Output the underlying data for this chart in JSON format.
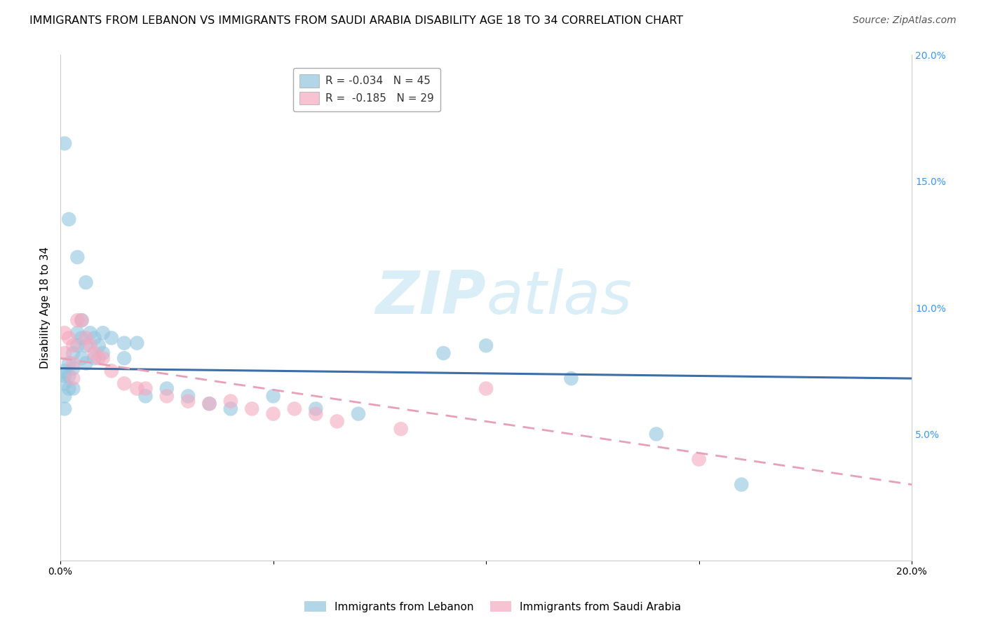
{
  "title": "IMMIGRANTS FROM LEBANON VS IMMIGRANTS FROM SAUDI ARABIA DISABILITY AGE 18 TO 34 CORRELATION CHART",
  "source": "Source: ZipAtlas.com",
  "ylabel": "Disability Age 18 to 34",
  "xlim": [
    0.0,
    0.2
  ],
  "ylim": [
    0.0,
    0.2
  ],
  "y_ticks": [
    0.05,
    0.1,
    0.15,
    0.2
  ],
  "y_tick_labels": [
    "5.0%",
    "10.0%",
    "15.0%",
    "20.0%"
  ],
  "watermark_zip": "ZIP",
  "watermark_atlas": "atlas",
  "legend_label_leb": "R = -0.034   N = 45",
  "legend_label_sau": "R =  -0.185   N = 29",
  "legend_R_leb": "-0.034",
  "legend_N_leb": "45",
  "legend_R_sau": "-0.185",
  "legend_N_sau": "29",
  "lebanon_color": "#92c5de",
  "saudi_color": "#f4a9c0",
  "background_color": "#ffffff",
  "grid_color": "#cccccc",
  "title_fontsize": 11.5,
  "axis_label_fontsize": 11,
  "tick_fontsize": 10,
  "legend_fontsize": 11,
  "source_fontsize": 10,
  "watermark_color": "#daeef8",
  "lebanon_line_color": "#3c6ea8",
  "saudi_line_color": "#e8a0b8",
  "leb_x": [
    0.001,
    0.001,
    0.001,
    0.001,
    0.001,
    0.002,
    0.002,
    0.002,
    0.003,
    0.003,
    0.003,
    0.004,
    0.004,
    0.005,
    0.005,
    0.005,
    0.006,
    0.006,
    0.007,
    0.008,
    0.008,
    0.009,
    0.01,
    0.01,
    0.012,
    0.015,
    0.015,
    0.018,
    0.02,
    0.025,
    0.03,
    0.035,
    0.04,
    0.05,
    0.06,
    0.07,
    0.09,
    0.1,
    0.12,
    0.14,
    0.16,
    0.001,
    0.002,
    0.004,
    0.006
  ],
  "leb_y": [
    0.075,
    0.073,
    0.07,
    0.065,
    0.06,
    0.078,
    0.073,
    0.068,
    0.082,
    0.076,
    0.068,
    0.09,
    0.085,
    0.095,
    0.088,
    0.08,
    0.085,
    0.078,
    0.09,
    0.088,
    0.08,
    0.085,
    0.09,
    0.082,
    0.088,
    0.086,
    0.08,
    0.086,
    0.065,
    0.068,
    0.065,
    0.062,
    0.06,
    0.065,
    0.06,
    0.058,
    0.082,
    0.085,
    0.072,
    0.05,
    0.03,
    0.165,
    0.135,
    0.12,
    0.11
  ],
  "sau_x": [
    0.001,
    0.001,
    0.002,
    0.003,
    0.003,
    0.004,
    0.005,
    0.006,
    0.007,
    0.008,
    0.009,
    0.01,
    0.012,
    0.015,
    0.018,
    0.02,
    0.025,
    0.03,
    0.035,
    0.04,
    0.045,
    0.05,
    0.055,
    0.06,
    0.065,
    0.08,
    0.1,
    0.15,
    0.003
  ],
  "sau_y": [
    0.09,
    0.082,
    0.088,
    0.085,
    0.078,
    0.095,
    0.095,
    0.088,
    0.085,
    0.082,
    0.08,
    0.08,
    0.075,
    0.07,
    0.068,
    0.068,
    0.065,
    0.063,
    0.062,
    0.063,
    0.06,
    0.058,
    0.06,
    0.058,
    0.055,
    0.052,
    0.068,
    0.04,
    0.072
  ],
  "leb_trendline_x": [
    0.0,
    0.2
  ],
  "leb_trendline_y": [
    0.076,
    0.072
  ],
  "sau_trendline_x": [
    0.0,
    0.2
  ],
  "sau_trendline_y": [
    0.08,
    0.03
  ]
}
